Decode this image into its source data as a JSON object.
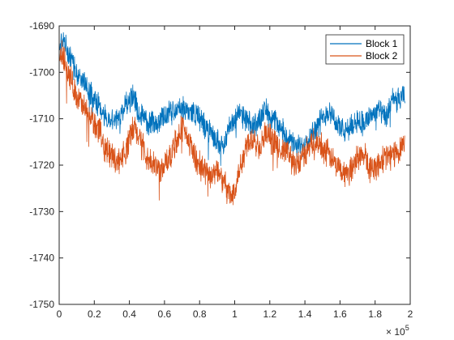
{
  "chart_data": {
    "type": "line",
    "title": "",
    "xlabel": "",
    "ylabel": "",
    "xlim": [
      0,
      200000
    ],
    "ylim": [
      -1750,
      -1690
    ],
    "x_ticks": [
      0,
      20000,
      40000,
      60000,
      80000,
      100000,
      120000,
      140000,
      160000,
      180000,
      200000
    ],
    "x_tick_labels": [
      "0",
      "0.2",
      "0.4",
      "0.6",
      "0.8",
      "1",
      "1.2",
      "1.4",
      "1.6",
      "1.8",
      "2"
    ],
    "x_exponent_base": "× 10",
    "x_exponent_power": "5",
    "y_ticks": [
      -1750,
      -1740,
      -1730,
      -1720,
      -1710,
      -1700,
      -1690
    ],
    "y_tick_labels": [
      "-1750",
      "-1740",
      "-1730",
      "-1720",
      "-1710",
      "-1700",
      "-1690"
    ],
    "grid": false,
    "legend_position": "top-right",
    "series": [
      {
        "name": "Block 1",
        "color": "#0072BD",
        "x": [
          0,
          2000,
          6000,
          10000,
          16000,
          22000,
          28000,
          34000,
          38000,
          42000,
          46000,
          50000,
          56000,
          62000,
          68000,
          72000,
          78000,
          84000,
          90000,
          94000,
          98000,
          102000,
          106000,
          110000,
          114000,
          118000,
          122000,
          126000,
          130000,
          134000,
          138000,
          142000,
          146000,
          150000,
          154000,
          158000,
          162000,
          166000,
          170000,
          174000,
          178000,
          182000,
          186000,
          190000,
          194000,
          197000
        ],
        "y": [
          -1695,
          -1693,
          -1697,
          -1700,
          -1703,
          -1707,
          -1711,
          -1710,
          -1707,
          -1705,
          -1709,
          -1711,
          -1711,
          -1709,
          -1708,
          -1708,
          -1709,
          -1712,
          -1715,
          -1715,
          -1711,
          -1709,
          -1710,
          -1712,
          -1710,
          -1708,
          -1710,
          -1712,
          -1714,
          -1716,
          -1716,
          -1714,
          -1712,
          -1710,
          -1708,
          -1711,
          -1713,
          -1712,
          -1710,
          -1711,
          -1709,
          -1708,
          -1710,
          -1706,
          -1706,
          -1705
        ],
        "noise": 2.2
      },
      {
        "name": "Block 2",
        "color": "#D95319",
        "x": [
          0,
          2000,
          6000,
          10000,
          16000,
          22000,
          26000,
          30000,
          34000,
          38000,
          42000,
          46000,
          50000,
          54000,
          58000,
          62000,
          66000,
          70000,
          74000,
          78000,
          82000,
          86000,
          90000,
          94000,
          98000,
          100000,
          102000,
          106000,
          110000,
          114000,
          118000,
          122000,
          126000,
          130000,
          134000,
          138000,
          142000,
          146000,
          150000,
          154000,
          158000,
          162000,
          166000,
          170000,
          174000,
          178000,
          182000,
          186000,
          190000,
          194000,
          197000
        ],
        "y": [
          -1697,
          -1696,
          -1701,
          -1705,
          -1709,
          -1712,
          -1716,
          -1718,
          -1719,
          -1717,
          -1712,
          -1714,
          -1719,
          -1720,
          -1721,
          -1719,
          -1715,
          -1712,
          -1715,
          -1719,
          -1721,
          -1722,
          -1721,
          -1724,
          -1727,
          -1725,
          -1722,
          -1716,
          -1714,
          -1716,
          -1713,
          -1715,
          -1717,
          -1717,
          -1720,
          -1719,
          -1716,
          -1715,
          -1716,
          -1718,
          -1720,
          -1722,
          -1721,
          -1718,
          -1718,
          -1721,
          -1720,
          -1718,
          -1718,
          -1716,
          -1715
        ],
        "noise": 2.5
      }
    ]
  }
}
